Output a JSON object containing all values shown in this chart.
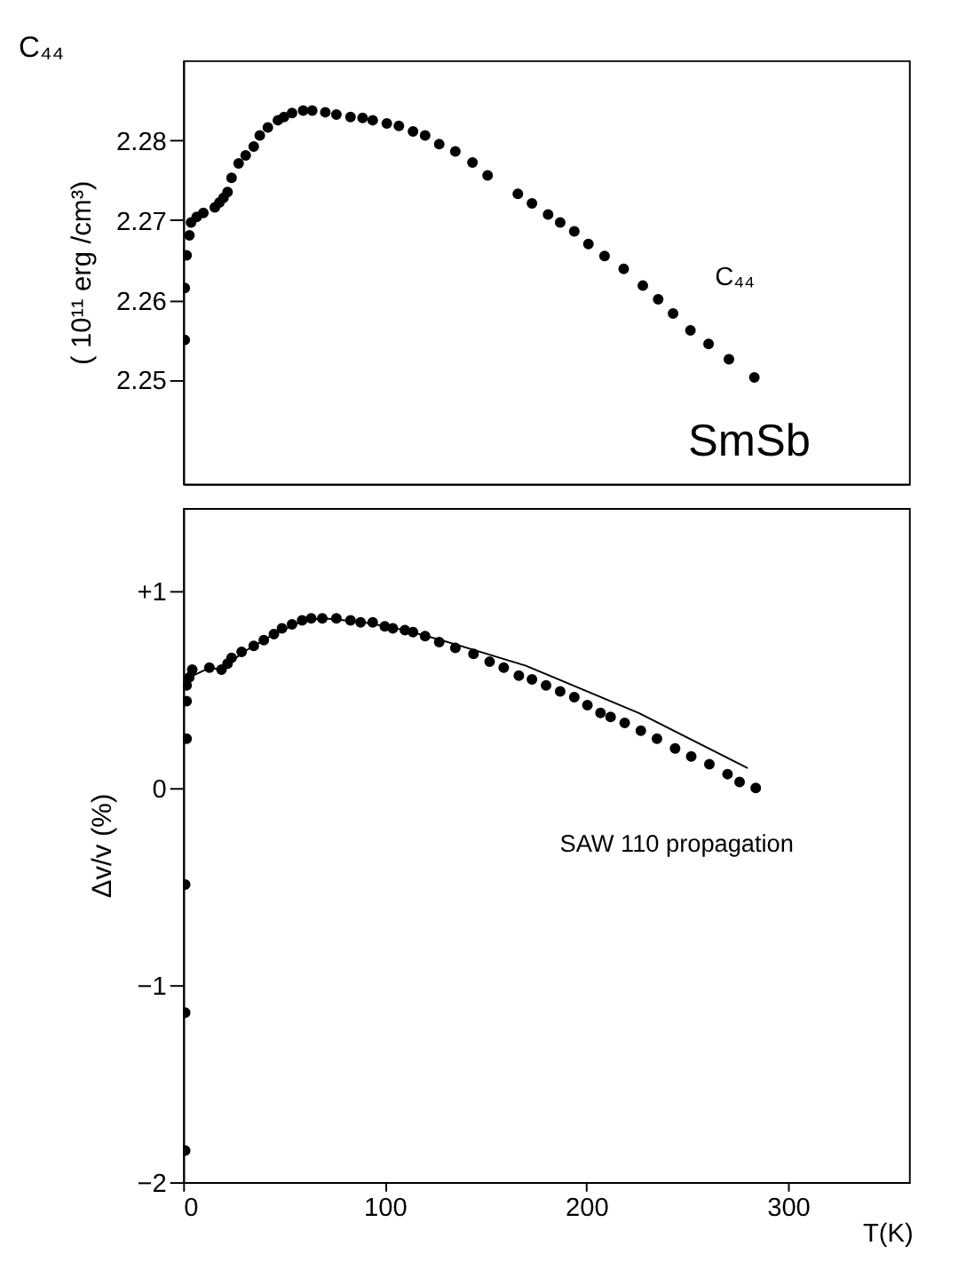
{
  "chart_data": [
    {
      "type": "scatter",
      "title": "C₄₄",
      "ylabel": "( 10¹¹ erg /cm³)",
      "xlim": [
        0,
        360
      ],
      "ylim": [
        2.237,
        2.29
      ],
      "yticks": [
        2.25,
        2.26,
        2.27,
        2.28
      ],
      "tick_labels": "y",
      "grid": false,
      "marker": "circle",
      "annotations": [
        "C₄₄",
        "SmSb"
      ],
      "series": [
        {
          "color": "#000000",
          "x": [
            0.8,
            0.8,
            1.7,
            3.1,
            3.9,
            6.7,
            10,
            15.7,
            18,
            20,
            22,
            24,
            27.5,
            31,
            35,
            38,
            42,
            47,
            50,
            54,
            59.5,
            64,
            70.5,
            76,
            83,
            89,
            94,
            101,
            107,
            114,
            120,
            127,
            135,
            143.5,
            151,
            166,
            173,
            181,
            187,
            194,
            201,
            209,
            218.5,
            228,
            235.6,
            243,
            251.6,
            260.6,
            270.7,
            283.3
          ],
          "values": [
            2.255,
            2.2615,
            2.2656,
            2.2681,
            2.2697,
            2.2704,
            2.2709,
            2.2716,
            2.2722,
            2.2728,
            2.2735,
            2.2753,
            2.2771,
            2.2781,
            2.2792,
            2.2806,
            2.2816,
            2.2825,
            2.2829,
            2.2834,
            2.2837,
            2.2837,
            2.2835,
            2.2832,
            2.2829,
            2.2828,
            2.2825,
            2.2821,
            2.2818,
            2.2811,
            2.2806,
            2.2795,
            2.2786,
            2.2772,
            2.2756,
            2.2733,
            2.2721,
            2.2707,
            2.2697,
            2.2686,
            2.267,
            2.2655,
            2.2639,
            2.2618,
            2.2601,
            2.2583,
            2.2562,
            2.2545,
            2.2526,
            2.2503
          ]
        }
      ]
    },
    {
      "type": "scatter",
      "xlabel": "T(K)",
      "ylabel": "Δv/v   (%)",
      "xlim": [
        0,
        360
      ],
      "xticks": [
        0,
        100,
        200,
        300
      ],
      "ylim": [
        -2,
        1.42
      ],
      "yticks": [
        -2,
        -1,
        0,
        {
          "value": 1,
          "label": "+1"
        }
      ],
      "grid": false,
      "marker": "circle",
      "annotations": [
        "SAW 110   propagation"
      ],
      "series": [
        {
          "color": "#000000",
          "x": [
            1,
            1,
            1,
            1.7,
            1.7,
            1.7,
            3,
            4.5,
            13,
            19,
            22,
            24,
            29,
            35,
            40,
            45,
            49,
            54,
            59,
            63.5,
            69,
            76,
            83,
            88,
            94,
            100,
            104,
            110,
            114,
            120,
            127,
            135,
            144,
            152,
            159,
            166.5,
            173,
            180,
            187,
            194,
            200.5,
            207,
            212,
            219,
            227,
            235,
            244,
            252,
            261,
            270,
            276,
            284
          ],
          "values": [
            -1.84,
            -1.14,
            -0.49,
            0.25,
            0.44,
            0.52,
            0.56,
            0.6,
            0.61,
            0.6,
            0.63,
            0.66,
            0.69,
            0.72,
            0.75,
            0.78,
            0.81,
            0.83,
            0.85,
            0.86,
            0.86,
            0.86,
            0.85,
            0.84,
            0.84,
            0.82,
            0.81,
            0.8,
            0.79,
            0.77,
            0.74,
            0.71,
            0.68,
            0.64,
            0.61,
            0.57,
            0.55,
            0.52,
            0.49,
            0.46,
            0.42,
            0.38,
            0.36,
            0.33,
            0.29,
            0.25,
            0.2,
            0.16,
            0.12,
            0.07,
            0.03,
            0
          ]
        },
        {
          "type": "line",
          "color": "#000000",
          "line_style": "solid",
          "marker": "none",
          "x": [
            3,
            13,
            19,
            30,
            45,
            60,
            70,
            90,
            110,
            128,
            170,
            226,
            280
          ],
          "values": [
            0.56,
            0.61,
            0.6,
            0.69,
            0.78,
            0.85,
            0.86,
            0.84,
            0.8,
            0.75,
            0.62,
            0.38,
            0.1
          ]
        }
      ]
    }
  ]
}
